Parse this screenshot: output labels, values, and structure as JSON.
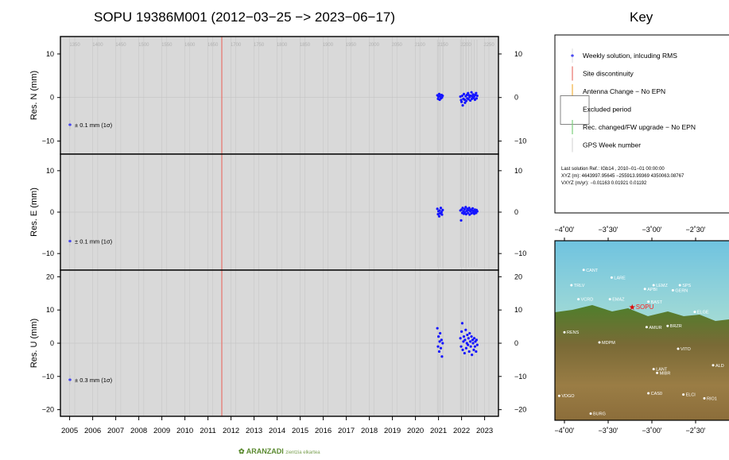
{
  "page": {
    "title": "SOPU 19386M001 (2012−03−25 −> 2023−06−17)",
    "key_title": "Key",
    "logo_text": "ARANZADI",
    "logo_subtext": "zientzia elkartea"
  },
  "colors": {
    "panel_bg": "#d9d9d9",
    "points": "#1515ff",
    "discontinuity": "#e8736a",
    "antenna": "#f0b040",
    "receiver": "#7ccf7c",
    "week_grid": "#c8c8c8"
  },
  "chart_data": {
    "type": "scatter",
    "x_range": [
      2004.6,
      2023.6
    ],
    "x_ticks": [
      "2005",
      "2006",
      "2007",
      "2008",
      "2009",
      "2010",
      "2011",
      "2012",
      "2013",
      "2014",
      "2015",
      "2016",
      "2017",
      "2018",
      "2019",
      "2020",
      "2021",
      "2022",
      "2023"
    ],
    "gps_weeks": [
      "1350",
      "1400",
      "1450",
      "1500",
      "1550",
      "1600",
      "1650",
      "1700",
      "1750",
      "1800",
      "1850",
      "1900",
      "1950",
      "2000",
      "2050",
      "2100",
      "2150",
      "2200",
      "2250"
    ],
    "site_discontinuity": 2011.6,
    "panels": [
      {
        "ylabel": "Res. N (mm)",
        "ylim": [
          -13,
          14
        ],
        "yticks": [
          -10,
          0,
          10
        ],
        "scale_label": "± 0.1 mm (1σ)",
        "points": [
          [
            2020.95,
            0.5
          ],
          [
            2020.98,
            -0.3
          ],
          [
            2021.0,
            0.2
          ],
          [
            2021.03,
            0.8
          ],
          [
            2021.05,
            -0.5
          ],
          [
            2021.07,
            0.3
          ],
          [
            2021.1,
            -0.2
          ],
          [
            2021.13,
            0.6
          ],
          [
            2021.15,
            0.0
          ],
          [
            2021.18,
            0.4
          ],
          [
            2021.95,
            0.2
          ],
          [
            2021.98,
            -0.6
          ],
          [
            2022.0,
            -1.0
          ],
          [
            2022.03,
            0.4
          ],
          [
            2022.05,
            -1.8
          ],
          [
            2022.08,
            -0.3
          ],
          [
            2022.1,
            0.8
          ],
          [
            2022.13,
            -0.5
          ],
          [
            2022.15,
            -1.2
          ],
          [
            2022.18,
            0.3
          ],
          [
            2022.2,
            -0.8
          ],
          [
            2022.23,
            0.6
          ],
          [
            2022.25,
            -0.2
          ],
          [
            2022.28,
            1.0
          ],
          [
            2022.3,
            -0.4
          ],
          [
            2022.33,
            0.5
          ],
          [
            2022.35,
            0.1
          ],
          [
            2022.38,
            -0.7
          ],
          [
            2022.4,
            0.4
          ],
          [
            2022.43,
            1.2
          ],
          [
            2022.45,
            -0.3
          ],
          [
            2022.48,
            0.2
          ],
          [
            2022.5,
            0.7
          ],
          [
            2022.53,
            -0.1
          ],
          [
            2022.55,
            0.3
          ],
          [
            2022.58,
            -0.5
          ],
          [
            2022.6,
            0.6
          ],
          [
            2022.63,
            1.0
          ],
          [
            2022.65,
            -0.2
          ],
          [
            2022.68,
            0.4
          ]
        ]
      },
      {
        "ylabel": "Res. E (mm)",
        "ylim": [
          -14,
          14
        ],
        "yticks": [
          -10,
          0,
          10
        ],
        "scale_label": "± 0.1 mm (1σ)",
        "points": [
          [
            2020.95,
            0.8
          ],
          [
            2020.98,
            -0.5
          ],
          [
            2021.0,
            0.2
          ],
          [
            2021.03,
            -1.0
          ],
          [
            2021.05,
            0.4
          ],
          [
            2021.07,
            -0.3
          ],
          [
            2021.1,
            1.0
          ],
          [
            2021.13,
            0.0
          ],
          [
            2021.15,
            -0.6
          ],
          [
            2021.18,
            0.5
          ],
          [
            2021.95,
            0.4
          ],
          [
            2021.98,
            -2.0
          ],
          [
            2022.0,
            0.6
          ],
          [
            2022.03,
            -0.2
          ],
          [
            2022.05,
            1.0
          ],
          [
            2022.08,
            0.2
          ],
          [
            2022.1,
            -0.4
          ],
          [
            2022.13,
            0.7
          ],
          [
            2022.15,
            0.0
          ],
          [
            2022.18,
            1.2
          ],
          [
            2022.2,
            -0.5
          ],
          [
            2022.23,
            0.3
          ],
          [
            2022.25,
            0.8
          ],
          [
            2022.28,
            -0.2
          ],
          [
            2022.3,
            0.5
          ],
          [
            2022.33,
            1.0
          ],
          [
            2022.35,
            -0.6
          ],
          [
            2022.38,
            0.2
          ],
          [
            2022.4,
            0.6
          ],
          [
            2022.43,
            -0.3
          ],
          [
            2022.45,
            0.4
          ],
          [
            2022.48,
            0.9
          ],
          [
            2022.5,
            -0.1
          ],
          [
            2022.53,
            0.3
          ],
          [
            2022.55,
            -0.4
          ],
          [
            2022.58,
            0.6
          ],
          [
            2022.6,
            0.1
          ],
          [
            2022.63,
            -0.2
          ],
          [
            2022.65,
            0.5
          ],
          [
            2022.68,
            0.2
          ]
        ]
      },
      {
        "ylabel": "Res. U (mm)",
        "ylim": [
          -22,
          22
        ],
        "yticks": [
          -20,
          -10,
          0,
          10,
          20
        ],
        "scale_label": "± 0.3 mm (1σ)",
        "points": [
          [
            2020.95,
            4.5
          ],
          [
            2020.98,
            -1.0
          ],
          [
            2021.0,
            2.0
          ],
          [
            2021.03,
            -2.5
          ],
          [
            2021.05,
            0.5
          ],
          [
            2021.07,
            3.0
          ],
          [
            2021.1,
            -1.5
          ],
          [
            2021.13,
            1.0
          ],
          [
            2021.15,
            -4.0
          ],
          [
            2021.18,
            0.0
          ],
          [
            2021.95,
            1.5
          ],
          [
            2021.98,
            -1.0
          ],
          [
            2022.0,
            3.5
          ],
          [
            2022.03,
            6.0
          ],
          [
            2022.05,
            -2.0
          ],
          [
            2022.08,
            0.5
          ],
          [
            2022.1,
            2.0
          ],
          [
            2022.13,
            -3.0
          ],
          [
            2022.15,
            1.0
          ],
          [
            2022.18,
            4.0
          ],
          [
            2022.2,
            -1.5
          ],
          [
            2022.23,
            0.0
          ],
          [
            2022.25,
            2.5
          ],
          [
            2022.28,
            -0.5
          ],
          [
            2022.3,
            1.5
          ],
          [
            2022.33,
            -2.5
          ],
          [
            2022.35,
            3.0
          ],
          [
            2022.38,
            0.5
          ],
          [
            2022.4,
            -1.0
          ],
          [
            2022.43,
            2.0
          ],
          [
            2022.45,
            -3.5
          ],
          [
            2022.48,
            1.0
          ],
          [
            2022.5,
            0.0
          ],
          [
            2022.53,
            -2.0
          ],
          [
            2022.55,
            1.5
          ],
          [
            2022.58,
            -1.0
          ],
          [
            2022.6,
            0.5
          ],
          [
            2022.63,
            -2.5
          ],
          [
            2022.65,
            1.0
          ],
          [
            2022.68,
            -0.5
          ]
        ]
      }
    ]
  },
  "key": {
    "items": [
      {
        "label": "Weekly solution, inlcuding RMS",
        "symbol": "point"
      },
      {
        "label": "Site discontinuity",
        "symbol": "red-line"
      },
      {
        "label": "Antenna Change − No EPN",
        "symbol": "orange-line"
      },
      {
        "label": "Excluded period",
        "symbol": "box"
      },
      {
        "label": "Rec. changed/FW upgrade − No EPN",
        "symbol": "green-line"
      },
      {
        "label": "GPS Week number",
        "symbol": "grey-line"
      }
    ],
    "solution_ref": "Last solution Ref.: IGb14 , 2010−01−01 00:00:00",
    "xyz_line": "XYZ (m):  4643997.95645  −255913.99369  4350063.08767",
    "vxyz_line": "VXYZ (m/yr):     −0.01163        0.01921        0.01192"
  },
  "map": {
    "lon_labels": [
      "−4˚00'",
      "−3˚30'",
      "−3˚00'",
      "−2˚30'"
    ],
    "stations": [
      {
        "name": "SOPU",
        "highlight": true,
        "lon": -3.23,
        "lat": 43.18
      },
      {
        "name": "CANT",
        "lon": -3.78,
        "lat": 43.47
      },
      {
        "name": "LARE",
        "lon": -3.46,
        "lat": 43.41
      },
      {
        "name": "TRLV",
        "lon": -3.92,
        "lat": 43.35
      },
      {
        "name": "VCRD",
        "lon": -3.84,
        "lat": 43.24
      },
      {
        "name": "EMAZ",
        "lon": -3.48,
        "lat": 43.24
      },
      {
        "name": "LEMZ",
        "lon": -2.98,
        "lat": 43.35
      },
      {
        "name": "APBI",
        "lon": -3.08,
        "lat": 43.32
      },
      {
        "name": "GERN",
        "lon": -2.76,
        "lat": 43.31
      },
      {
        "name": "SPS",
        "lon": -2.68,
        "lat": 43.35
      },
      {
        "name": "BAST",
        "lon": -3.04,
        "lat": 43.22
      },
      {
        "name": "ELGE",
        "lon": -2.51,
        "lat": 43.14
      },
      {
        "name": "AMUR",
        "lon": -3.06,
        "lat": 43.02
      },
      {
        "name": "BRZR",
        "lon": -2.82,
        "lat": 43.03
      },
      {
        "name": "RENS",
        "lon": -4.0,
        "lat": 42.98
      },
      {
        "name": "MDPM",
        "lon": -3.6,
        "lat": 42.9
      },
      {
        "name": "VITO",
        "lon": -2.7,
        "lat": 42.85
      },
      {
        "name": "ALD",
        "lon": -2.3,
        "lat": 42.72
      },
      {
        "name": "LANT",
        "lon": -2.98,
        "lat": 42.69
      },
      {
        "name": "MIBR",
        "lon": -2.94,
        "lat": 42.66
      },
      {
        "name": "CAS0",
        "lon": -3.04,
        "lat": 42.5
      },
      {
        "name": "ELCI",
        "lon": -2.64,
        "lat": 42.49
      },
      {
        "name": "RIO1",
        "lon": -2.4,
        "lat": 42.46
      },
      {
        "name": "VDGO",
        "lon": -4.06,
        "lat": 42.48
      },
      {
        "name": "BURG",
        "lon": -3.7,
        "lat": 42.34
      }
    ]
  }
}
